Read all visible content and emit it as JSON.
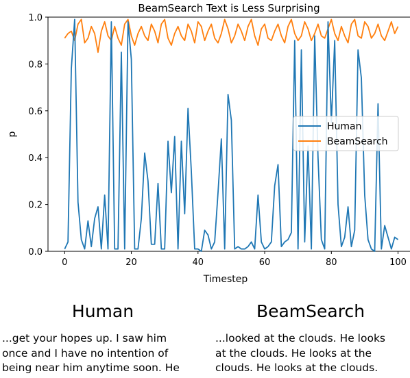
{
  "chart_data": {
    "type": "line",
    "title": "BeamSearch Text is Less Surprising",
    "xlabel": "Timestep",
    "ylabel": "p",
    "xlim": [
      -5,
      104
    ],
    "ylim": [
      0,
      1.0
    ],
    "xticks": [
      0,
      20,
      40,
      60,
      80,
      100
    ],
    "yticks": [
      0.0,
      0.2,
      0.4,
      0.6,
      0.8,
      1.0
    ],
    "xtick_labels": [
      "0",
      "20",
      "40",
      "60",
      "80",
      "100"
    ],
    "ytick_labels": [
      "0.0",
      "0.2",
      "0.4",
      "0.6",
      "0.8",
      "1.0"
    ],
    "grid": false,
    "legend_position": "center-right",
    "series": [
      {
        "name": "Human",
        "color": "#1f77b4",
        "values": [
          0.01,
          0.04,
          0.78,
          0.99,
          0.21,
          0.05,
          0.01,
          0.13,
          0.02,
          0.14,
          0.19,
          0.01,
          0.24,
          0.01,
          0.98,
          0.01,
          0.01,
          0.85,
          0.01,
          0.98,
          0.82,
          0.01,
          0.01,
          0.14,
          0.42,
          0.3,
          0.03,
          0.03,
          0.29,
          0.01,
          0.01,
          0.47,
          0.25,
          0.49,
          0.01,
          0.47,
          0.16,
          0.61,
          0.34,
          0.01,
          0.01,
          0.0,
          0.09,
          0.07,
          0.01,
          0.04,
          0.25,
          0.48,
          0.01,
          0.67,
          0.56,
          0.01,
          0.02,
          0.01,
          0.01,
          0.02,
          0.04,
          0.01,
          0.24,
          0.04,
          0.01,
          0.02,
          0.04,
          0.28,
          0.37,
          0.02,
          0.04,
          0.05,
          0.08,
          0.9,
          0.01,
          0.86,
          0.04,
          0.45,
          0.01,
          0.92,
          0.4,
          0.05,
          0.01,
          0.98,
          0.55,
          0.9,
          0.2,
          0.02,
          0.06,
          0.19,
          0.02,
          0.09,
          0.86,
          0.74,
          0.24,
          0.05,
          0.01,
          0.0,
          0.63,
          0.01,
          0.11,
          0.06,
          0.01,
          0.06,
          0.05
        ]
      },
      {
        "name": "BeamSearch",
        "color": "#ff7f0e",
        "values": [
          0.91,
          0.93,
          0.94,
          0.9,
          0.97,
          0.99,
          0.89,
          0.91,
          0.96,
          0.93,
          0.85,
          0.94,
          0.98,
          0.92,
          0.9,
          0.96,
          0.91,
          0.88,
          0.97,
          0.99,
          0.92,
          0.88,
          0.93,
          0.96,
          0.92,
          0.9,
          0.97,
          0.94,
          0.89,
          0.97,
          0.99,
          0.91,
          0.88,
          0.93,
          0.96,
          0.92,
          0.9,
          0.97,
          0.94,
          0.89,
          0.98,
          0.96,
          0.9,
          0.94,
          0.97,
          0.91,
          0.89,
          0.93,
          0.99,
          0.95,
          0.89,
          0.92,
          0.97,
          0.94,
          0.9,
          0.96,
          0.99,
          0.92,
          0.88,
          0.95,
          0.97,
          0.91,
          0.9,
          0.94,
          0.97,
          0.92,
          0.89,
          0.96,
          0.99,
          0.93,
          0.9,
          0.92,
          0.98,
          0.95,
          0.9,
          0.93,
          0.97,
          0.92,
          0.91,
          0.95,
          0.99,
          0.93,
          0.9,
          0.96,
          0.92,
          0.89,
          0.97,
          0.99,
          0.92,
          0.91,
          0.98,
          0.96,
          0.91,
          0.93,
          0.97,
          0.92,
          0.9,
          0.94,
          0.98,
          0.93,
          0.96
        ]
      }
    ]
  },
  "comparison": {
    "human": {
      "title": "Human",
      "lines": [
        "...get your hopes up. I saw him",
        "once and I have no intention of",
        "being near him anytime soon. He"
      ]
    },
    "beamsearch": {
      "title": "BeamSearch",
      "lines": [
        "...looked at the clouds. He looks",
        "at the clouds. He looks at the",
        "clouds. He looks at the clouds."
      ]
    }
  }
}
